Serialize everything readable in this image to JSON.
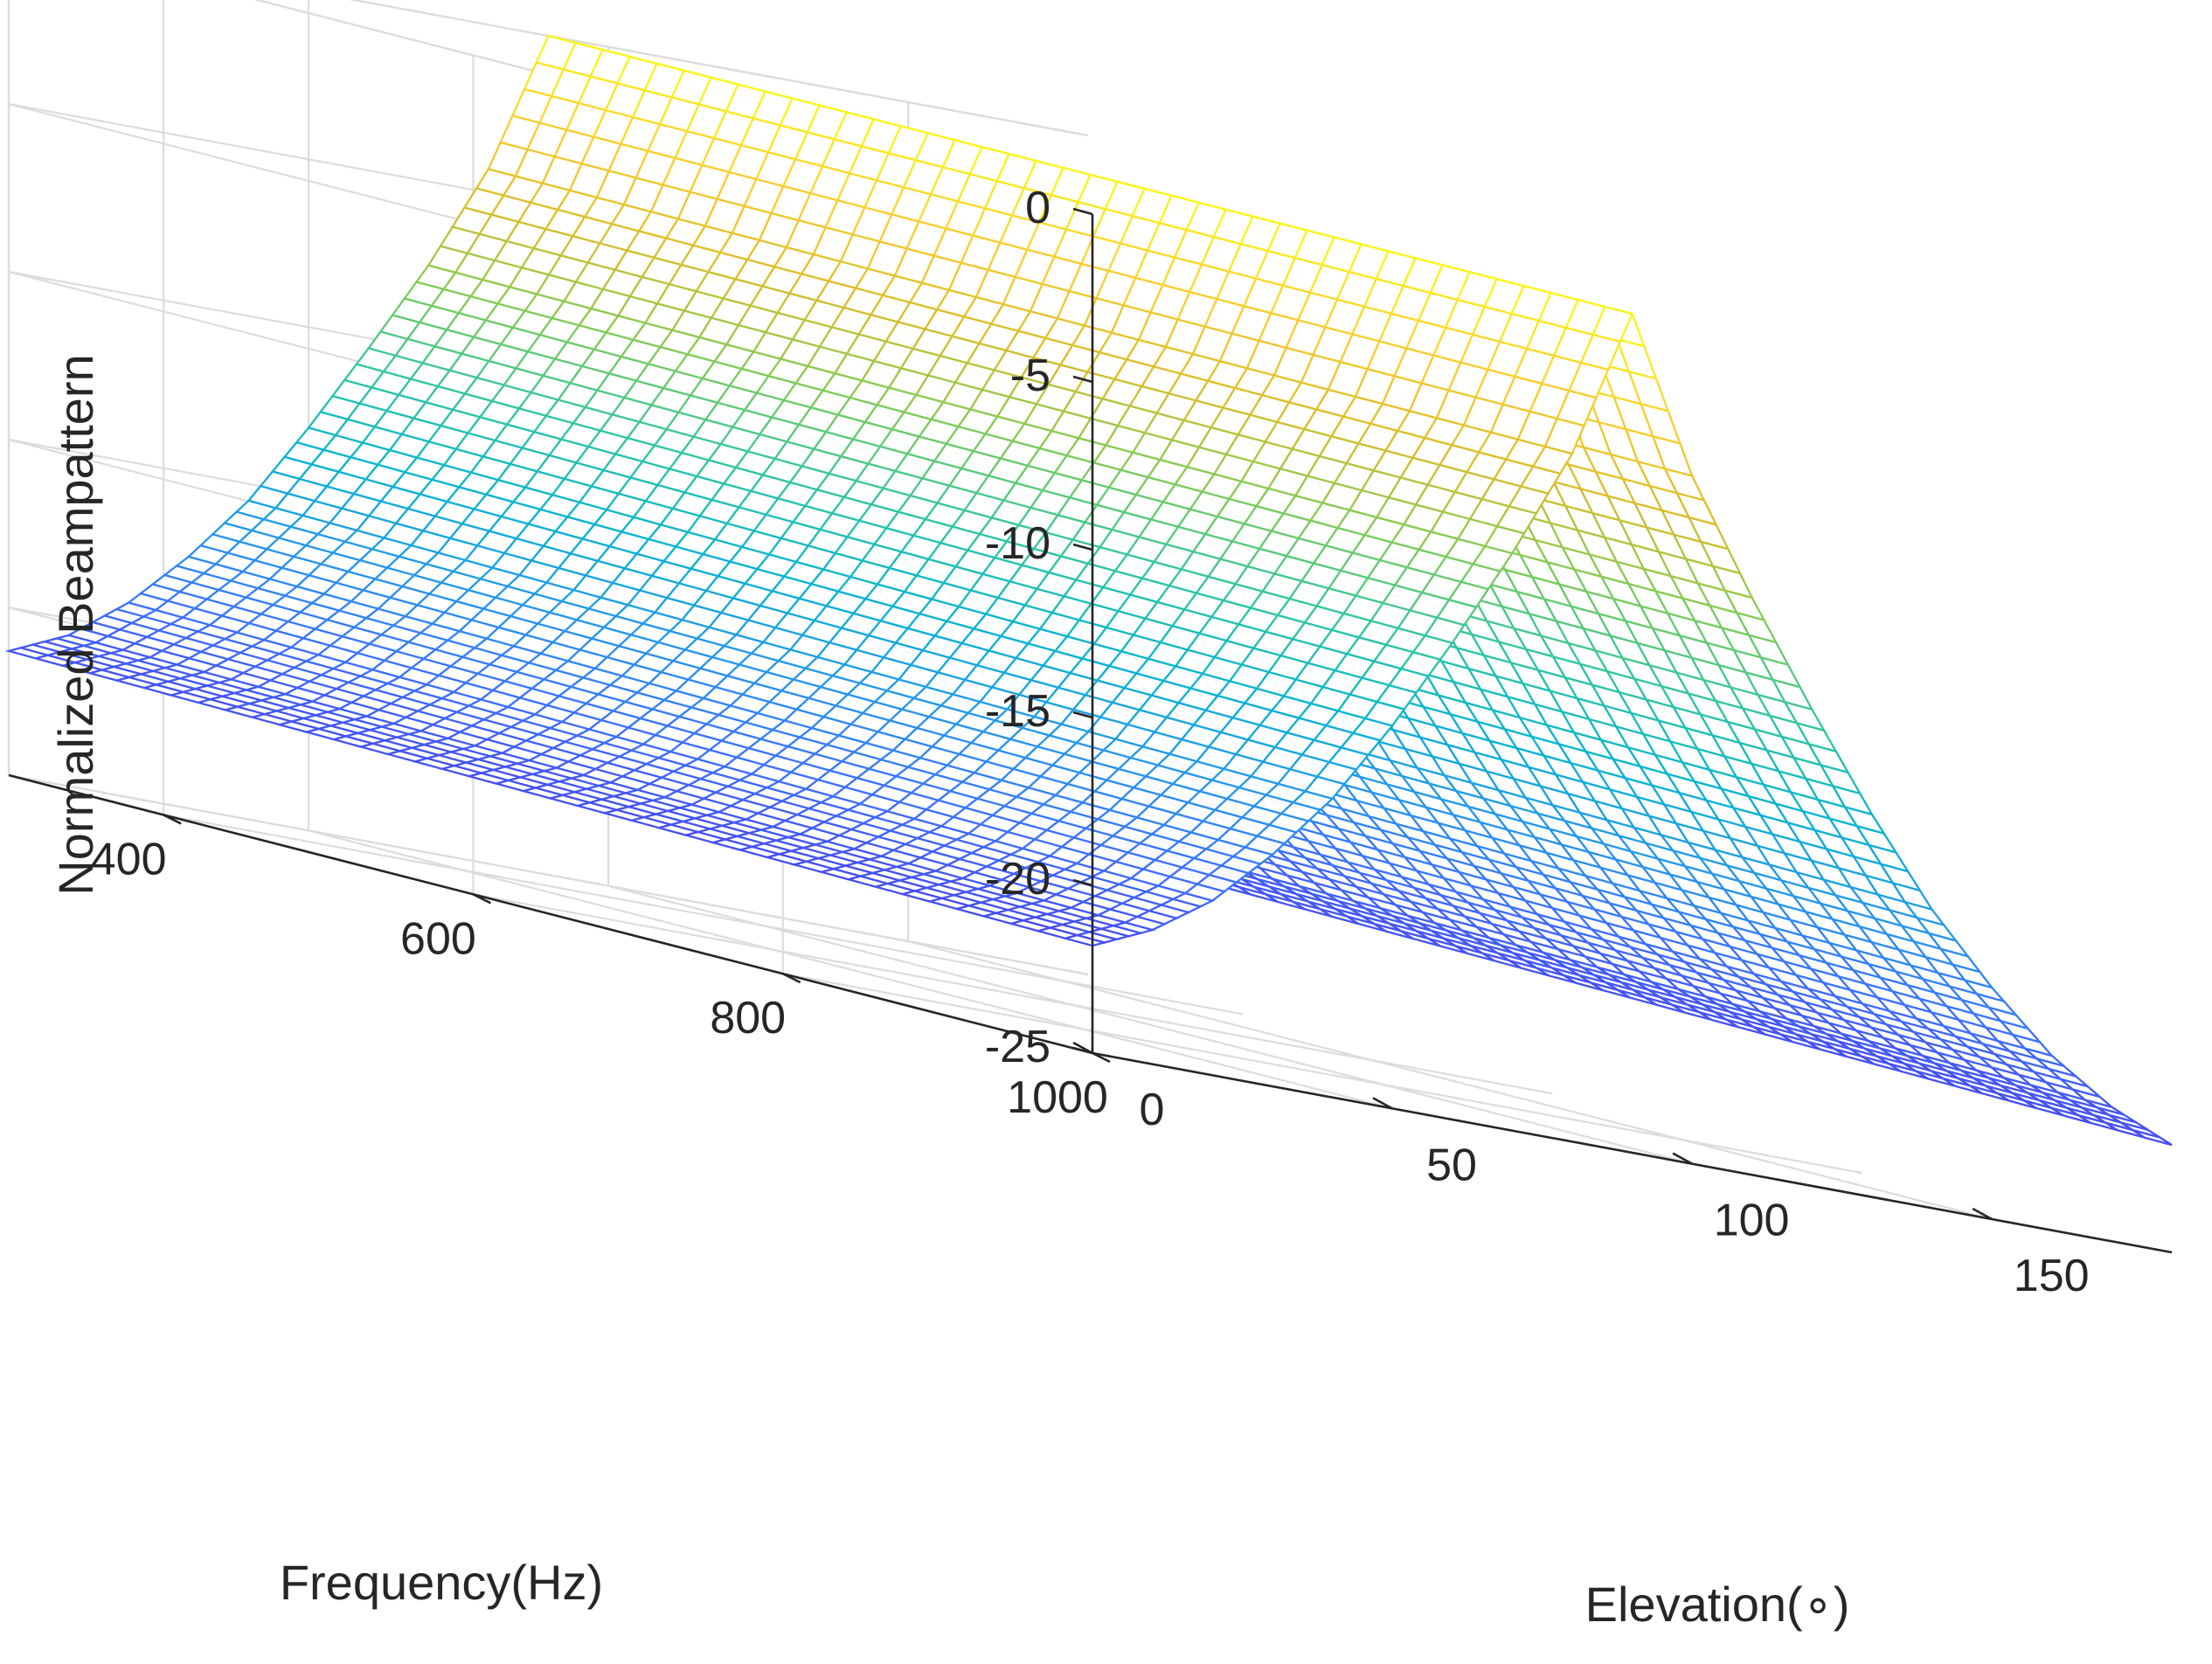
{
  "chart_data": {
    "type": "surface",
    "title": "",
    "xlabel": "Elevation(∘)",
    "ylabel": "Frequency(Hz)",
    "zlabel": "Normalized Beampattern",
    "xlim": [
      0,
      180
    ],
    "ylim": [
      300,
      1000
    ],
    "zlim": [
      -25,
      0
    ],
    "x_ticks": [
      0,
      50,
      100,
      150
    ],
    "x_tick_labels": [
      "0",
      "50",
      "100",
      "150"
    ],
    "y_ticks": [
      400,
      600,
      800,
      1000
    ],
    "y_tick_labels": [
      "400",
      "600",
      "800",
      "1000"
    ],
    "z_ticks": [
      -25,
      -20,
      -15,
      -10,
      -5,
      0
    ],
    "z_tick_labels": [
      "-25",
      "-20",
      "-15",
      "-10",
      "-5",
      "0"
    ],
    "grid": true,
    "colormap": "parula",
    "surface": {
      "elevation_deg": [
        0,
        10,
        20,
        30,
        40,
        50,
        60,
        70,
        80,
        90,
        100,
        110,
        120,
        130,
        140,
        150,
        160,
        170,
        180
      ],
      "frequency_hz": [
        300,
        1000
      ],
      "beampattern_db_at_300hz": [
        -21.3,
        -20.5,
        -19.2,
        -17.5,
        -15.5,
        -13,
        -10.3,
        -7.5,
        -4.3,
        0,
        -4.3,
        -7.5,
        -10.3,
        -13,
        -15.5,
        -17.5,
        -19.2,
        -20.5,
        -21.3
      ],
      "beampattern_db_at_1000hz": [
        -21.8,
        -21,
        -19.8,
        -18.1,
        -16.1,
        -13.6,
        -10.8,
        -7.8,
        -4.5,
        0,
        -4.5,
        -7.8,
        -10.8,
        -13.6,
        -16.1,
        -18.1,
        -19.8,
        -21,
        -21.8
      ],
      "peak_elevation_deg": 90,
      "peak_db": 0
    }
  }
}
